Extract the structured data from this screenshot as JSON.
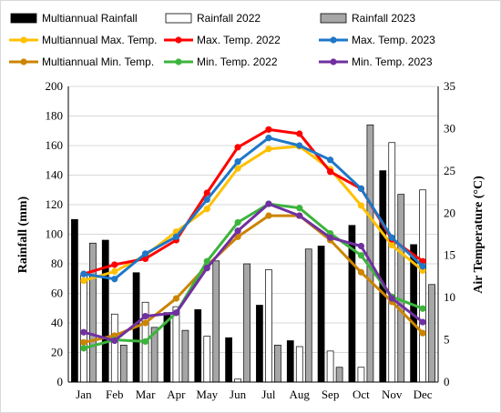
{
  "chart_data": {
    "type": "bar+line",
    "categories": [
      "Jan",
      "Feb",
      "Mar",
      "Apr",
      "May",
      "Jun",
      "Jul",
      "Aug",
      "Sep",
      "Oct",
      "Nov",
      "Dec"
    ],
    "ylabel_left": "Rainfall (mm)",
    "ylabel_right": "Air Temperature (°C)",
    "ylim_left": [
      0,
      200
    ],
    "yticks_left": [
      "0",
      "20",
      "40",
      "60",
      "80",
      "100",
      "120",
      "140",
      "160",
      "180",
      "200"
    ],
    "ylim_right": [
      0,
      35
    ],
    "yticks_right": [
      "0",
      "5",
      "10",
      "15",
      "20",
      "25",
      "30",
      "35"
    ],
    "legend_position": "top",
    "bar_series": [
      {
        "name": "Multiannual Rainfall",
        "color": "#000000",
        "values": [
          110,
          96,
          74,
          47,
          49,
          30,
          52,
          28,
          92,
          106,
          143,
          93
        ]
      },
      {
        "name": "Rainfall 2022",
        "color": "#ffffff",
        "values": [
          72,
          46,
          54,
          51,
          31,
          2,
          76,
          24,
          21,
          10,
          162,
          130
        ]
      },
      {
        "name": "Rainfall 2023",
        "color": "#a6a6a6",
        "values": [
          94,
          25,
          37,
          35,
          82,
          80,
          25,
          90,
          10,
          174,
          127,
          66
        ]
      }
    ],
    "line_series": [
      {
        "name": "Multiannual Max. Temp.",
        "color": "#ffc000",
        "values": [
          12.0,
          13.1,
          15.0,
          17.8,
          20.5,
          25.3,
          27.6,
          27.9,
          25.2,
          20.9,
          16.2,
          13.2
        ]
      },
      {
        "name": "Max. Temp. 2022",
        "color": "#ff0000",
        "values": [
          12.8,
          13.9,
          14.6,
          16.8,
          22.4,
          27.8,
          29.9,
          29.4,
          24.9,
          22.9,
          16.9,
          14.3
        ]
      },
      {
        "name": "Max. Temp. 2023",
        "color": "#1f77c8",
        "values": [
          12.8,
          12.2,
          15.2,
          17.2,
          21.6,
          26.1,
          28.9,
          28.0,
          26.3,
          22.9,
          17.1,
          13.7
        ]
      },
      {
        "name": "Multiannual Min. Temp.",
        "color": "#cc8400",
        "values": [
          4.7,
          5.5,
          7.0,
          9.9,
          13.8,
          17.2,
          19.7,
          19.7,
          16.8,
          13.0,
          9.5,
          5.8
        ]
      },
      {
        "name": "Min. Temp. 2022",
        "color": "#3cb43c",
        "values": [
          4.0,
          5.0,
          4.8,
          8.2,
          14.3,
          18.9,
          21.1,
          20.6,
          17.6,
          15.0,
          10.1,
          8.7
        ]
      },
      {
        "name": "Min. Temp. 2023",
        "color": "#7030a0",
        "values": [
          5.9,
          4.9,
          7.8,
          8.2,
          13.5,
          17.9,
          21.1,
          19.7,
          17.1,
          16.1,
          9.9,
          7.1
        ]
      }
    ]
  }
}
